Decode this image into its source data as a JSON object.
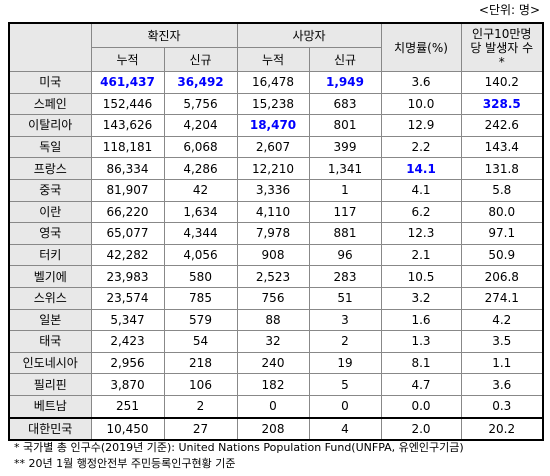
{
  "unit": "<단위: 명>",
  "header": {
    "confirmed": "확진자",
    "deaths": "사망자",
    "fatality": "치명률(%)",
    "per100k": "인구10만명당 발생자 수*",
    "cumulative": "누적",
    "new": "신규"
  },
  "highlight_color": "#0000ff",
  "table": {
    "rows": [
      {
        "country": "미국",
        "values": [
          "461,437",
          "36,492",
          "16,478",
          "1,949",
          "3.6",
          "140.2"
        ],
        "highlight": [
          0,
          1,
          3
        ]
      },
      {
        "country": "스페인",
        "values": [
          "152,446",
          "5,756",
          "15,238",
          "683",
          "10.0",
          "328.5"
        ],
        "highlight": [
          5
        ]
      },
      {
        "country": "이탈리아",
        "values": [
          "143,626",
          "4,204",
          "18,470",
          "801",
          "12.9",
          "242.6"
        ],
        "highlight": [
          2
        ]
      },
      {
        "country": "독일",
        "values": [
          "118,181",
          "6,068",
          "2,607",
          "399",
          "2.2",
          "143.4"
        ],
        "highlight": []
      },
      {
        "country": "프랑스",
        "values": [
          "86,334",
          "4,286",
          "12,210",
          "1,341",
          "14.1",
          "131.8"
        ],
        "highlight": [
          4
        ]
      },
      {
        "country": "중국",
        "values": [
          "81,907",
          "42",
          "3,336",
          "1",
          "4.1",
          "5.8"
        ],
        "highlight": []
      },
      {
        "country": "이란",
        "values": [
          "66,220",
          "1,634",
          "4,110",
          "117",
          "6.2",
          "80.0"
        ],
        "highlight": []
      },
      {
        "country": "영국",
        "values": [
          "65,077",
          "4,344",
          "7,978",
          "881",
          "12.3",
          "97.1"
        ],
        "highlight": []
      },
      {
        "country": "터키",
        "values": [
          "42,282",
          "4,056",
          "908",
          "96",
          "2.1",
          "50.9"
        ],
        "highlight": []
      },
      {
        "country": "벨기에",
        "values": [
          "23,983",
          "580",
          "2,523",
          "283",
          "10.5",
          "206.8"
        ],
        "highlight": []
      },
      {
        "country": "스위스",
        "values": [
          "23,574",
          "785",
          "756",
          "51",
          "3.2",
          "274.1"
        ],
        "highlight": []
      },
      {
        "country": "일본",
        "values": [
          "5,347",
          "579",
          "88",
          "3",
          "1.6",
          "4.2"
        ],
        "highlight": []
      },
      {
        "country": "태국",
        "values": [
          "2,423",
          "54",
          "32",
          "2",
          "1.3",
          "3.5"
        ],
        "highlight": []
      },
      {
        "country": "인도네시아",
        "values": [
          "2,956",
          "218",
          "240",
          "19",
          "8.1",
          "1.1"
        ],
        "highlight": []
      },
      {
        "country": "필리핀",
        "values": [
          "3,870",
          "106",
          "182",
          "5",
          "4.7",
          "3.6"
        ],
        "highlight": []
      },
      {
        "country": "베트남",
        "values": [
          "251",
          "2",
          "0",
          "0",
          "0.0",
          "0.3"
        ],
        "highlight": []
      },
      {
        "country": "대한민국",
        "values": [
          "10,450",
          "27",
          "208",
          "4",
          "2.0",
          "20.2"
        ],
        "highlight": []
      }
    ]
  },
  "footnotes": [
    "* 국가별 총 인구수(2019년 기준): United Nations Population Fund(UNFPA, 유엔인구기금)",
    "** 20년 1월 행정안전부 주민등록인구현황 기준"
  ]
}
